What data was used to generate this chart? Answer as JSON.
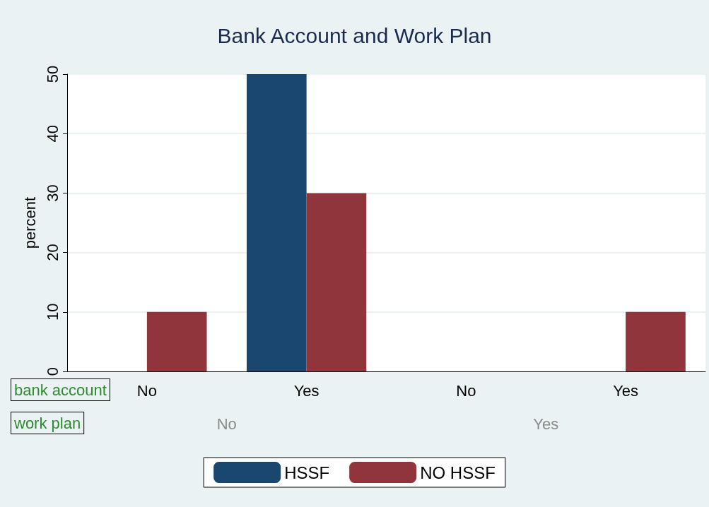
{
  "chart_data": {
    "type": "bar",
    "title": "Bank Account and Work Plan",
    "ylabel": "percent",
    "categories": [
      "No",
      "Yes",
      "No",
      "Yes"
    ],
    "series": [
      {
        "name": "HSSF",
        "color": "#1a476f",
        "values": [
          0,
          50,
          0,
          0
        ]
      },
      {
        "name": "NO HSSF",
        "color": "#90353b",
        "values": [
          10,
          30,
          0,
          10
        ]
      }
    ],
    "ylim": [
      0,
      50
    ],
    "yticks": [
      0,
      10,
      20,
      30,
      40,
      50
    ],
    "grid": "y",
    "legend": "bottom",
    "annotations": [
      "bank account",
      "work plan",
      "No",
      "Yes"
    ]
  }
}
